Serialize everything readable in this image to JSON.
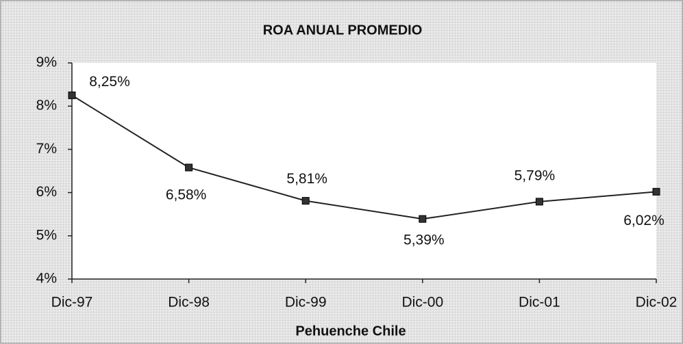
{
  "chart_data": {
    "type": "line",
    "title": "ROA ANUAL PROMEDIO",
    "x_label": "Pehuenche Chile",
    "categories": [
      "Dic-97",
      "Dic-98",
      "Dic-99",
      "Dic-00",
      "Dic-01",
      "Dic-02"
    ],
    "series": [
      {
        "name": "Pehuenche Chile",
        "color": "#222222",
        "values": [
          8.25,
          6.58,
          5.81,
          5.39,
          5.79,
          6.02
        ],
        "value_labels": [
          "8,25%",
          "6,58%",
          "5,81%",
          "5,39%",
          "5,79%",
          "6,02%"
        ]
      }
    ],
    "ylim": [
      4,
      9
    ],
    "yticks": [
      {
        "value": 4,
        "label": "4%"
      },
      {
        "value": 5,
        "label": "5%"
      },
      {
        "value": 6,
        "label": "6%"
      },
      {
        "value": 7,
        "label": "7%"
      },
      {
        "value": 8,
        "label": "8%"
      },
      {
        "value": 9,
        "label": "9%"
      }
    ]
  }
}
